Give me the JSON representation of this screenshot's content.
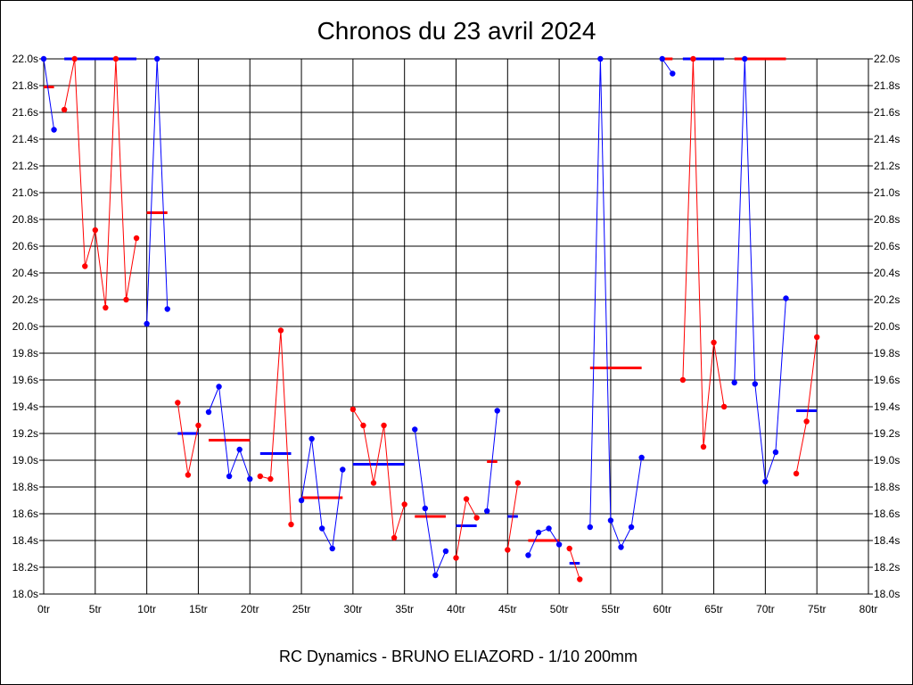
{
  "chart_data": {
    "type": "line",
    "title": "Chronos du 23 avril 2024",
    "footer": "RC Dynamics - BRUNO ELIAZORD - 1/10 200mm",
    "x_ticks": [
      "0tr",
      "5tr",
      "10tr",
      "15tr",
      "20tr",
      "25tr",
      "30tr",
      "35tr",
      "40tr",
      "45tr",
      "50tr",
      "55tr",
      "60tr",
      "65tr",
      "70tr",
      "75tr",
      "80tr"
    ],
    "y_ticks": [
      "18.0s",
      "18.2s",
      "18.4s",
      "18.6s",
      "18.8s",
      "19.0s",
      "19.2s",
      "19.4s",
      "19.6s",
      "19.8s",
      "20.0s",
      "20.2s",
      "20.4s",
      "20.6s",
      "20.8s",
      "21.0s",
      "21.2s",
      "21.4s",
      "21.6s",
      "21.8s",
      "22.0s"
    ],
    "xlim": [
      0,
      80
    ],
    "ylim": [
      18.0,
      22.0
    ],
    "grid": true,
    "colors": {
      "red": "#ff0000",
      "blue": "#0000ff"
    },
    "series": [
      {
        "color": "#0000ff",
        "points": [
          [
            0,
            22.0
          ],
          [
            1,
            21.47
          ]
        ]
      },
      {
        "color": "#ff0000",
        "points": [
          [
            2,
            21.62
          ],
          [
            3,
            22.0
          ],
          [
            4,
            20.45
          ],
          [
            5,
            20.72
          ],
          [
            6,
            20.14
          ],
          [
            7,
            22.0
          ],
          [
            8,
            20.2
          ],
          [
            9,
            20.66
          ]
        ]
      },
      {
        "color": "#0000ff",
        "points": [
          [
            10,
            20.02
          ],
          [
            11,
            22.0
          ],
          [
            12,
            20.13
          ]
        ]
      },
      {
        "color": "#ff0000",
        "points": [
          [
            13,
            19.43
          ],
          [
            14,
            18.89
          ],
          [
            15,
            19.26
          ]
        ]
      },
      {
        "color": "#0000ff",
        "points": [
          [
            16,
            19.36
          ],
          [
            17,
            19.55
          ],
          [
            18,
            18.88
          ],
          [
            19,
            19.08
          ],
          [
            20,
            18.86
          ]
        ]
      },
      {
        "color": "#ff0000",
        "points": [
          [
            21,
            18.88
          ],
          [
            22,
            18.86
          ],
          [
            23,
            19.97
          ],
          [
            24,
            18.52
          ]
        ]
      },
      {
        "color": "#0000ff",
        "points": [
          [
            25,
            18.7
          ],
          [
            26,
            19.16
          ],
          [
            27,
            18.49
          ],
          [
            28,
            18.34
          ],
          [
            29,
            18.93
          ]
        ]
      },
      {
        "color": "#ff0000",
        "points": [
          [
            30,
            19.38
          ],
          [
            31,
            19.26
          ],
          [
            32,
            18.83
          ],
          [
            33,
            19.26
          ],
          [
            34,
            18.42
          ],
          [
            35,
            18.67
          ]
        ]
      },
      {
        "color": "#0000ff",
        "points": [
          [
            36,
            19.23
          ],
          [
            37,
            18.64
          ],
          [
            38,
            18.14
          ],
          [
            39,
            18.32
          ]
        ]
      },
      {
        "color": "#ff0000",
        "points": [
          [
            40,
            18.27
          ],
          [
            41,
            18.71
          ],
          [
            42,
            18.57
          ]
        ]
      },
      {
        "color": "#0000ff",
        "points": [
          [
            43,
            18.62
          ],
          [
            44,
            19.37
          ]
        ]
      },
      {
        "color": "#ff0000",
        "points": [
          [
            45,
            18.33
          ],
          [
            46,
            18.83
          ]
        ]
      },
      {
        "color": "#0000ff",
        "points": [
          [
            47,
            18.29
          ],
          [
            48,
            18.46
          ],
          [
            49,
            18.49
          ],
          [
            50,
            18.37
          ]
        ]
      },
      {
        "color": "#ff0000",
        "points": [
          [
            51,
            18.34
          ],
          [
            52,
            18.11
          ]
        ]
      },
      {
        "color": "#0000ff",
        "points": [
          [
            53,
            18.5
          ],
          [
            54,
            22.0
          ],
          [
            55,
            18.55
          ],
          [
            56,
            18.35
          ],
          [
            57,
            18.5
          ],
          [
            58,
            19.02
          ]
        ]
      },
      {
        "color": "#0000ff",
        "points": [
          [
            60,
            22.0
          ],
          [
            61,
            21.89
          ]
        ]
      },
      {
        "color": "#ff0000",
        "points": [
          [
            62,
            19.6
          ],
          [
            63,
            22.0
          ],
          [
            64,
            19.1
          ],
          [
            65,
            19.88
          ],
          [
            66,
            19.4
          ]
        ]
      },
      {
        "color": "#0000ff",
        "points": [
          [
            67,
            19.58
          ],
          [
            68,
            22.0
          ],
          [
            69,
            19.57
          ],
          [
            70,
            18.84
          ],
          [
            71,
            19.06
          ],
          [
            72,
            20.21
          ]
        ]
      },
      {
        "color": "#ff0000",
        "points": [
          [
            73,
            18.9
          ],
          [
            74,
            19.29
          ],
          [
            75,
            19.92
          ]
        ]
      }
    ],
    "averages": [
      {
        "color": "#ff0000",
        "x": [
          0,
          1
        ],
        "y": 21.79
      },
      {
        "color": "#0000ff",
        "x": [
          2,
          9
        ],
        "y": 22.0
      },
      {
        "color": "#ff0000",
        "x": [
          10,
          12
        ],
        "y": 20.85
      },
      {
        "color": "#0000ff",
        "x": [
          13,
          15
        ],
        "y": 19.2
      },
      {
        "color": "#ff0000",
        "x": [
          16,
          20
        ],
        "y": 19.15
      },
      {
        "color": "#0000ff",
        "x": [
          21,
          24
        ],
        "y": 19.05
      },
      {
        "color": "#ff0000",
        "x": [
          25,
          29
        ],
        "y": 18.72
      },
      {
        "color": "#0000ff",
        "x": [
          30,
          35
        ],
        "y": 18.97
      },
      {
        "color": "#ff0000",
        "x": [
          36,
          39
        ],
        "y": 18.58
      },
      {
        "color": "#0000ff",
        "x": [
          40,
          42
        ],
        "y": 18.51
      },
      {
        "color": "#ff0000",
        "x": [
          43,
          44
        ],
        "y": 18.99
      },
      {
        "color": "#0000ff",
        "x": [
          45,
          46
        ],
        "y": 18.58
      },
      {
        "color": "#ff0000",
        "x": [
          47,
          50
        ],
        "y": 18.4
      },
      {
        "color": "#0000ff",
        "x": [
          51,
          52
        ],
        "y": 18.23
      },
      {
        "color": "#ff0000",
        "x": [
          53,
          58
        ],
        "y": 19.69
      },
      {
        "color": "#ff0000",
        "x": [
          60,
          61
        ],
        "y": 22.0
      },
      {
        "color": "#0000ff",
        "x": [
          62,
          66
        ],
        "y": 22.0
      },
      {
        "color": "#ff0000",
        "x": [
          67,
          72
        ],
        "y": 22.0
      },
      {
        "color": "#0000ff",
        "x": [
          73,
          75
        ],
        "y": 19.37
      }
    ]
  }
}
